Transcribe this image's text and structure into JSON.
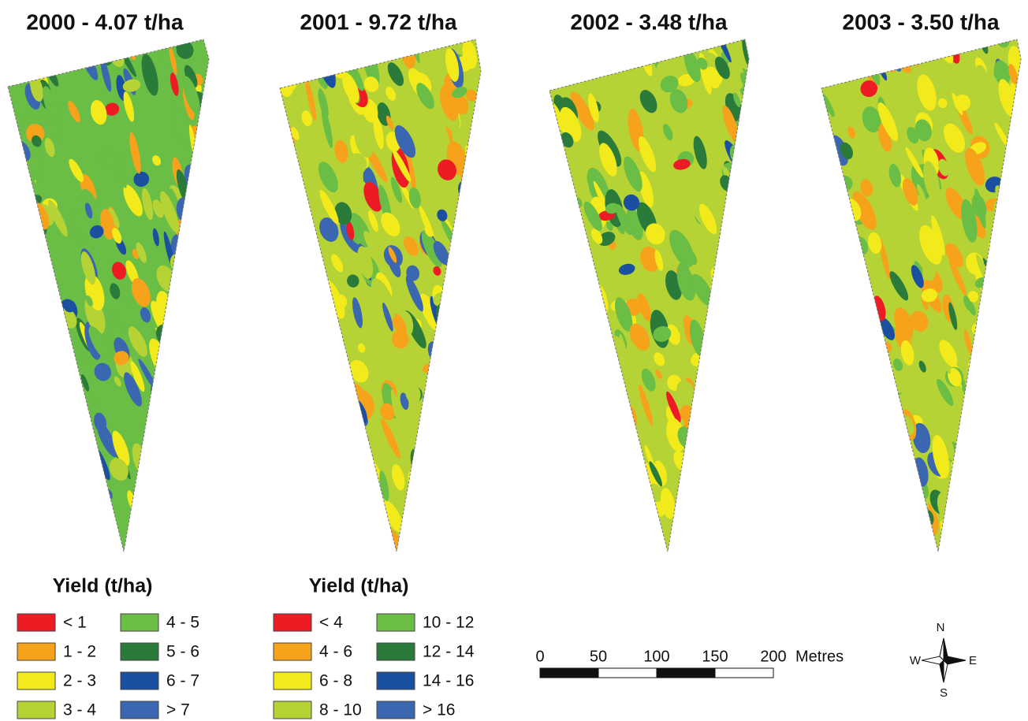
{
  "maps": [
    {
      "title": "2000 - 4.07 t/ha"
    },
    {
      "title": "2001 - 9.72 t/ha"
    },
    {
      "title": "2002 - 3.48 t/ha"
    },
    {
      "title": "2003 - 3.50 t/ha"
    }
  ],
  "legends": [
    {
      "title": "Yield (t/ha)",
      "items": [
        {
          "label": "< 1",
          "color": "#ed1c24"
        },
        {
          "label": "1 - 2",
          "color": "#f7a21b"
        },
        {
          "label": "2 - 3",
          "color": "#f2ea1a"
        },
        {
          "label": "3 - 4",
          "color": "#b5d334"
        },
        {
          "label": "4 - 5",
          "color": "#6abd45"
        },
        {
          "label": "5 - 6",
          "color": "#2a7a3a"
        },
        {
          "label": "6 - 7",
          "color": "#1b4fa0"
        },
        {
          "label": "> 7",
          "color": "#3b66b0"
        }
      ]
    },
    {
      "title": "Yield (t/ha)",
      "items": [
        {
          "label": "< 4",
          "color": "#ed1c24"
        },
        {
          "label": "4 - 6",
          "color": "#f7a21b"
        },
        {
          "label": "6 - 8",
          "color": "#f2ea1a"
        },
        {
          "label": "8 - 10",
          "color": "#b5d334"
        },
        {
          "label": "10 - 12",
          "color": "#6abd45"
        },
        {
          "label": "12 - 14",
          "color": "#2a7a3a"
        },
        {
          "label": "14 - 16",
          "color": "#1b4fa0"
        },
        {
          "label": "> 16",
          "color": "#3b66b0"
        }
      ]
    }
  ],
  "scale_bar": {
    "ticks": [
      0,
      50,
      100,
      150,
      200
    ],
    "unit": "Metres"
  },
  "compass": {
    "n": "N",
    "e": "E",
    "s": "S",
    "w": "W"
  }
}
